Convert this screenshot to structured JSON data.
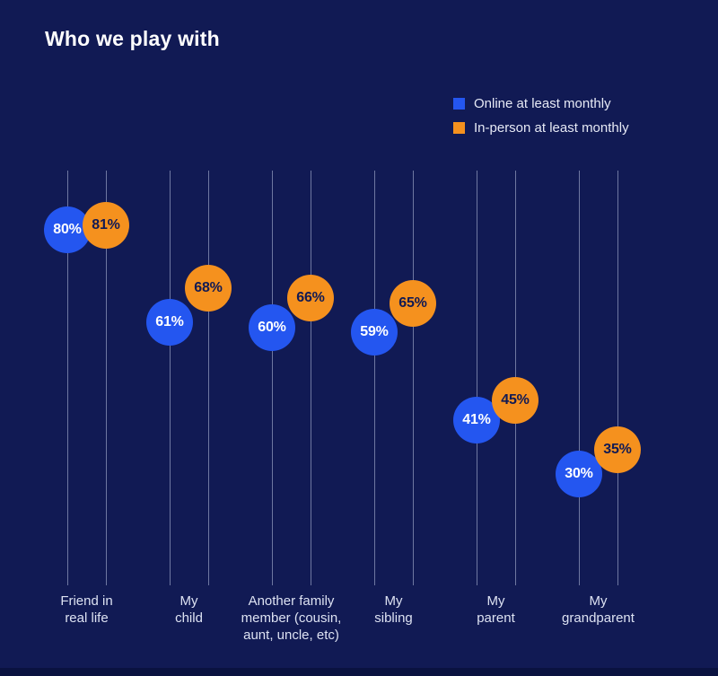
{
  "title": "Who we play with",
  "legend": [
    {
      "label": "Online at least monthly",
      "color": "#2456F0"
    },
    {
      "label": "In-person at least monthly",
      "color": "#F5911E"
    }
  ],
  "colors": {
    "background": "#111A54",
    "online": "#2456F0",
    "inperson": "#F5911E",
    "online_value_text": "#FFFFFF",
    "inperson_value_text": "#111A54",
    "gridline": "rgba(205,214,238,0.5)",
    "category_label_text": "#DDE2F2",
    "title_text": "#FFFFFF"
  },
  "chart_data": {
    "type": "scatter",
    "title": "Who we play with",
    "categories": [
      "Friend in\nreal life",
      "My\nchild",
      "Another family\nmember (cousin,\naunt, uncle, etc)",
      "My\nsibling",
      "My\nparent",
      "My\ngrandparent"
    ],
    "series": [
      {
        "name": "Online at least monthly",
        "values": [
          80,
          61,
          60,
          59,
          41,
          30
        ],
        "color": "#2456F0",
        "text_color": "#FFFFFF"
      },
      {
        "name": "In-person at least monthly",
        "values": [
          81,
          68,
          66,
          65,
          45,
          35
        ],
        "color": "#F5911E",
        "text_color": "#111A54"
      }
    ],
    "value_format": "percent",
    "ylim": [
      0,
      100
    ],
    "grid": "vertical-line-per-point",
    "legend_position": "top-right"
  }
}
